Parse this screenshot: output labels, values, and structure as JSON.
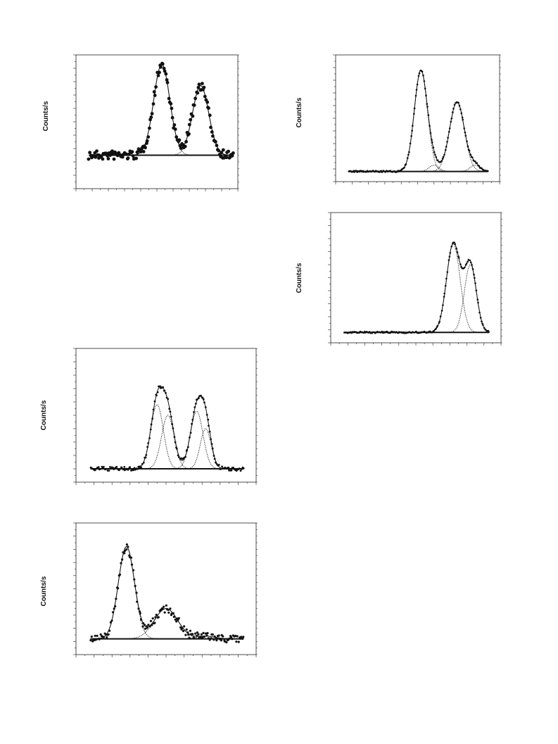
{
  "panels": [
    {
      "y_label": "Counts/s"
    },
    {
      "y_label": "Counts/s"
    },
    {
      "y_label": "Counts/s"
    },
    {
      "y_label": "Counts/s"
    },
    {
      "y_label": "Counts/s"
    }
  ]
}
